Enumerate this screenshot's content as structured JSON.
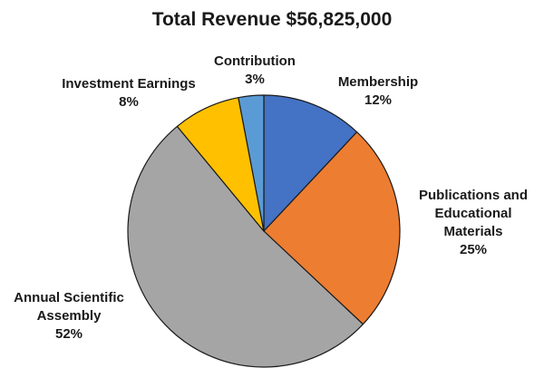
{
  "chart_data": {
    "type": "pie",
    "title": "Total Revenue $56,825,000",
    "start_angle_deg": 0,
    "direction": "clockwise",
    "slices": [
      {
        "name": "Membership",
        "label_lines": [
          "Membership"
        ],
        "percent_label": "12%",
        "value": 12,
        "color": "#4472C4"
      },
      {
        "name": "Publications and Educational Materials",
        "label_lines": [
          "Publications and",
          "Educational",
          "Materials"
        ],
        "percent_label": "25%",
        "value": 25,
        "color": "#ED7D31"
      },
      {
        "name": "Annual Scientific Assembly",
        "label_lines": [
          "Annual Scientific",
          "Assembly"
        ],
        "percent_label": "52%",
        "value": 52,
        "color": "#A5A5A5"
      },
      {
        "name": "Investment Earnings",
        "label_lines": [
          "Investment Earnings"
        ],
        "percent_label": "8%",
        "value": 8,
        "color": "#FFC000"
      },
      {
        "name": "Contribution",
        "label_lines": [
          "Contribution"
        ],
        "percent_label": "3%",
        "value": 3,
        "color": "#5B9BD5"
      }
    ],
    "slice_border_color": "#1a1a1a"
  }
}
